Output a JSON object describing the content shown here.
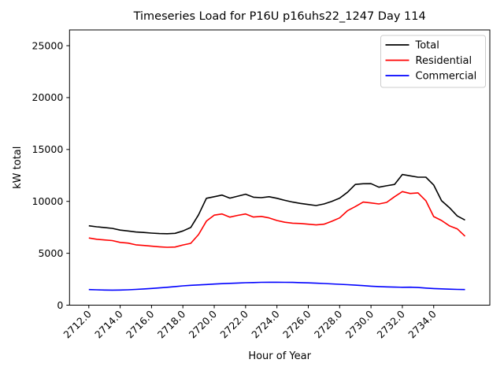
{
  "chart_data": {
    "type": "line",
    "title": "Timeseries Load for P16U p16uhs22_1247  Day 114",
    "xlabel": "Hour of Year",
    "ylabel": "kW total",
    "grid": false,
    "xlim": [
      2710.77,
      2737.58
    ],
    "ylim": [
      0,
      26520
    ],
    "xticks": [
      "2712.0",
      "2714.0",
      "2716.0",
      "2718.0",
      "2720.0",
      "2722.0",
      "2724.0",
      "2726.0",
      "2728.0",
      "2730.0",
      "2732.0",
      "2734.0"
    ],
    "xtick_values": [
      2712,
      2714,
      2716,
      2718,
      2720,
      2722,
      2724,
      2726,
      2728,
      2730,
      2732,
      2734
    ],
    "yticks": [
      0,
      5000,
      10000,
      15000,
      20000,
      25000
    ],
    "legend": {
      "position": "upper right",
      "entries": [
        "Total",
        "Residential",
        "Commercial"
      ]
    },
    "x": [
      2712.0,
      2712.5,
      2713.0,
      2713.5,
      2714.0,
      2714.5,
      2715.0,
      2715.5,
      2716.0,
      2716.5,
      2717.0,
      2717.5,
      2718.0,
      2718.5,
      2719.0,
      2719.5,
      2720.0,
      2720.5,
      2721.0,
      2721.5,
      2722.0,
      2722.5,
      2723.0,
      2723.5,
      2724.0,
      2724.5,
      2725.0,
      2725.5,
      2726.0,
      2726.5,
      2727.0,
      2727.5,
      2728.0,
      2728.5,
      2729.0,
      2729.5,
      2730.0,
      2730.5,
      2731.0,
      2731.5,
      2732.0,
      2732.5,
      2733.0,
      2733.5,
      2734.0,
      2734.5,
      2735.0,
      2735.5,
      2736.0
    ],
    "series": [
      {
        "name": "Total",
        "color": "#000000",
        "values": [
          7650,
          7550,
          7480,
          7400,
          7230,
          7150,
          7050,
          7000,
          6940,
          6900,
          6880,
          6920,
          7150,
          7480,
          8700,
          10300,
          10450,
          10610,
          10310,
          10500,
          10690,
          10400,
          10360,
          10450,
          10300,
          10100,
          9930,
          9800,
          9700,
          9600,
          9750,
          10000,
          10310,
          10870,
          11630,
          11700,
          11710,
          11370,
          11500,
          11630,
          12590,
          12460,
          12330,
          12330,
          11580,
          10060,
          9400,
          8600,
          8200
        ]
      },
      {
        "name": "Residential",
        "color": "#ff0000",
        "values": [
          6470,
          6350,
          6280,
          6220,
          6050,
          5980,
          5810,
          5750,
          5680,
          5620,
          5580,
          5600,
          5800,
          5960,
          6800,
          8100,
          8670,
          8790,
          8480,
          8650,
          8790,
          8490,
          8550,
          8410,
          8160,
          7990,
          7900,
          7870,
          7800,
          7730,
          7800,
          8080,
          8410,
          9100,
          9500,
          9930,
          9850,
          9750,
          9900,
          10450,
          10940,
          10760,
          10820,
          10060,
          8540,
          8160,
          7650,
          7350,
          6650
        ]
      },
      {
        "name": "Commercial",
        "color": "#0000ff",
        "values": [
          1500,
          1480,
          1460,
          1450,
          1460,
          1480,
          1520,
          1560,
          1610,
          1660,
          1720,
          1790,
          1860,
          1910,
          1950,
          1990,
          2030,
          2070,
          2100,
          2130,
          2160,
          2180,
          2200,
          2210,
          2210,
          2200,
          2190,
          2170,
          2150,
          2120,
          2090,
          2050,
          2010,
          1970,
          1930,
          1880,
          1830,
          1790,
          1760,
          1740,
          1720,
          1730,
          1700,
          1650,
          1600,
          1570,
          1540,
          1520,
          1500
        ]
      }
    ]
  }
}
